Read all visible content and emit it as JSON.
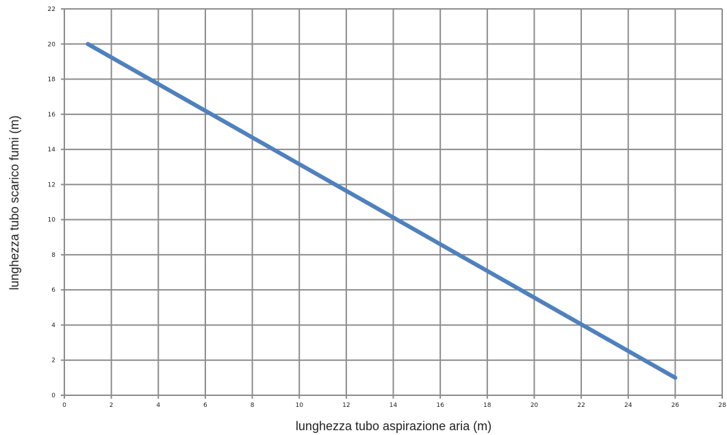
{
  "chart_data": {
    "type": "line",
    "title": "",
    "xlabel": "lunghezza tubo aspirazione aria (m)",
    "ylabel": "lunghezza tubo scarico fumi (m)",
    "xlim": [
      0,
      28
    ],
    "ylim": [
      0,
      22
    ],
    "x_ticks": [
      "0",
      "2",
      "4",
      "6",
      "8",
      "10",
      "12",
      "14",
      "16",
      "18",
      "20",
      "22",
      "24",
      "26",
      "28"
    ],
    "y_ticks": [
      "0",
      "2",
      "4",
      "6",
      "8",
      "10",
      "12",
      "14",
      "16",
      "18",
      "20",
      "22"
    ],
    "grid": true,
    "legend": "none",
    "series": [
      {
        "color": "#4f81bd",
        "points": [
          [
            1,
            20
          ],
          [
            26,
            1
          ]
        ]
      }
    ]
  }
}
